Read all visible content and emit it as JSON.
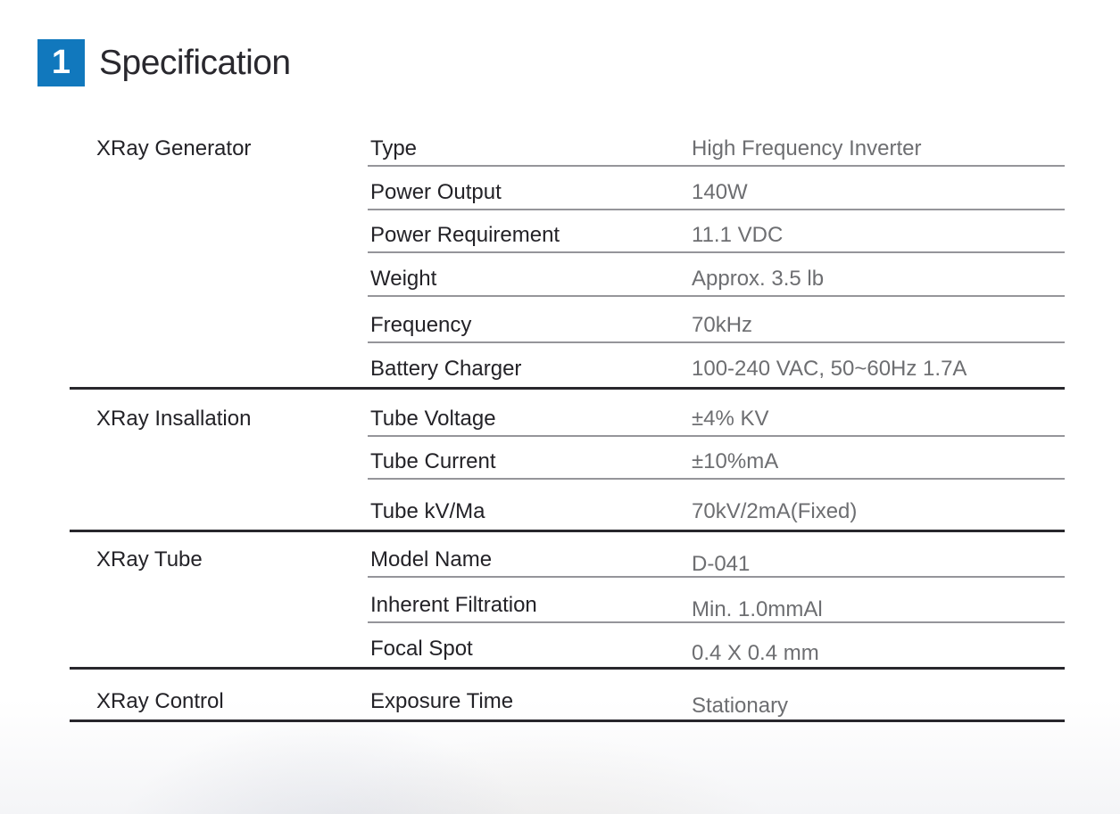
{
  "header": {
    "section_number": "1",
    "title": "Specification"
  },
  "colors": {
    "accent_blue": "#1178bd",
    "badge_number_color": "#ffffff",
    "label_text": "#232227",
    "value_text": "#6d6e71",
    "row_divider": "#95959a",
    "section_divider": "#28272c"
  },
  "table": {
    "sections": [
      {
        "category": "XRay Generator",
        "rows": [
          {
            "property": "Type",
            "value": "High Frequency Inverter"
          },
          {
            "property": "Power Output",
            "value": "140W"
          },
          {
            "property": "Power Requirement",
            "value": "11.1 VDC"
          },
          {
            "property": "Weight",
            "value": "Approx. 3.5 lb"
          },
          {
            "property": "Frequency",
            "value": "70kHz"
          },
          {
            "property": "Battery Charger",
            "value": "100-240 VAC, 50~60Hz 1.7A"
          }
        ]
      },
      {
        "category": "XRay Insallation",
        "rows": [
          {
            "property": "Tube Voltage",
            "value": "±4% KV"
          },
          {
            "property": "Tube Current",
            "value": "±10%mA"
          },
          {
            "property": "Tube kV/Ma",
            "value": "70kV/2mA(Fixed)"
          }
        ]
      },
      {
        "category": "XRay Tube",
        "rows": [
          {
            "property": "Model Name",
            "value": "D-041"
          },
          {
            "property": "Inherent Filtration",
            "value": "Min. 1.0mmAl"
          },
          {
            "property": "Focal Spot",
            "value": "0.4 X 0.4 mm"
          }
        ]
      },
      {
        "category": "XRay Control",
        "rows": [
          {
            "property": "Exposure Time",
            "value": "Stationary"
          }
        ]
      }
    ]
  }
}
